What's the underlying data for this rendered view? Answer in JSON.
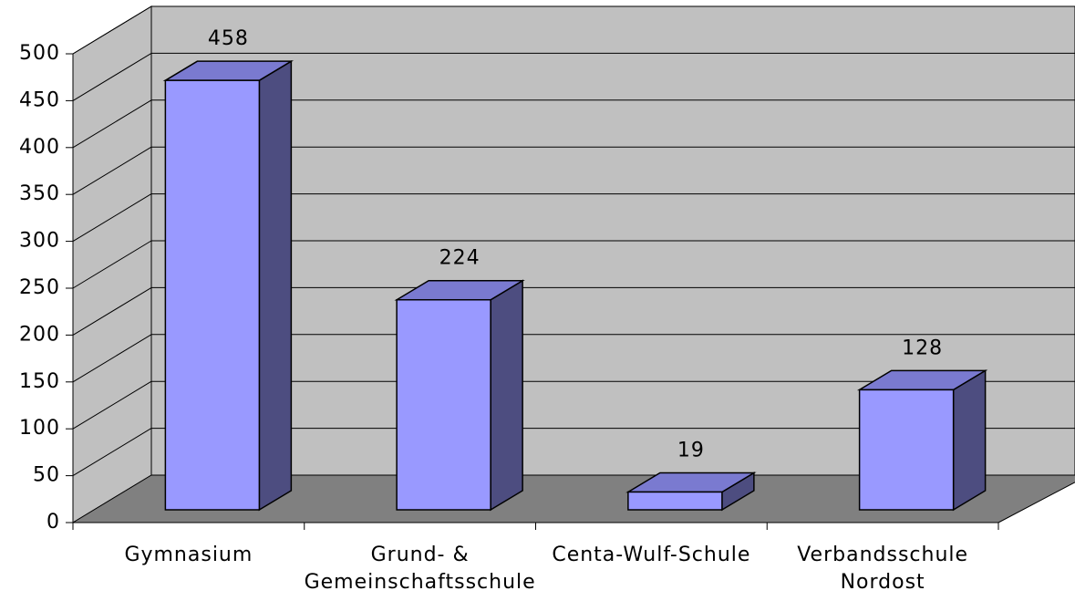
{
  "chart_data": {
    "type": "bar3d",
    "categories": [
      "Gymnasium",
      "Grund- &\nGemeinschaftsschule",
      "Centa-Wulf-Schule",
      "Verbandsschule\nNordost"
    ],
    "values": [
      458,
      224,
      19,
      128
    ],
    "color": "#9999ff",
    "ylim": [
      0,
      500
    ],
    "yticks": [
      0,
      50,
      100,
      150,
      200,
      250,
      300,
      350,
      400,
      450,
      500
    ],
    "grid": true
  }
}
